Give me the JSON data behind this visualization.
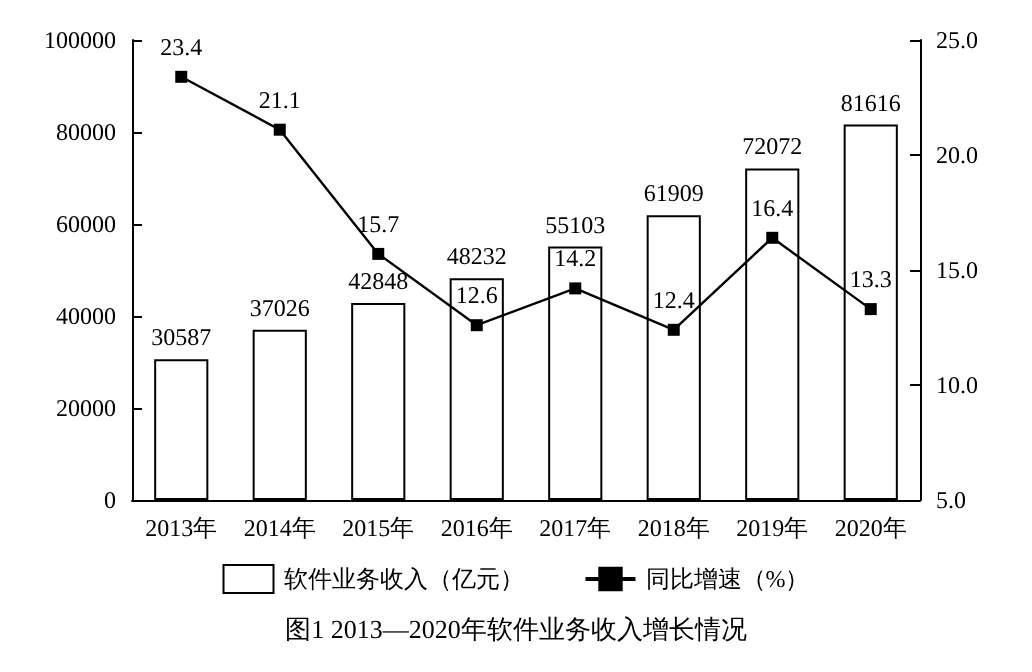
{
  "chart_data": {
    "type": "bar",
    "title": "图1 2013—2020年软件业务收入增长情况",
    "categories": [
      "2013年",
      "2014年",
      "2015年",
      "2016年",
      "2017年",
      "2018年",
      "2019年",
      "2020年"
    ],
    "series": [
      {
        "name": "软件业务收入（亿元）",
        "color": "#ffffff",
        "values": [
          30587,
          37026,
          42848,
          48232,
          55103,
          61909,
          72072,
          81616
        ]
      },
      {
        "name": "同比增速（%）",
        "type": "line",
        "axis": "y2",
        "color": "#000000",
        "values": [
          23.4,
          21.1,
          15.7,
          12.6,
          14.2,
          12.4,
          16.4,
          13.3
        ]
      }
    ],
    "ylim": [
      0,
      100000
    ],
    "yticks": [
      0,
      20000,
      40000,
      60000,
      80000,
      100000
    ],
    "y2lim": [
      5,
      25
    ],
    "y2ticks": [
      {
        "value": 5,
        "label": "5.0"
      },
      {
        "value": 10,
        "label": "10.0"
      },
      {
        "value": 15,
        "label": "15.0"
      },
      {
        "value": 20,
        "label": "20.0"
      },
      {
        "value": 25,
        "label": "25.0"
      }
    ],
    "data_labels": true,
    "legend": "bottom",
    "marker": "square",
    "grid": false
  }
}
